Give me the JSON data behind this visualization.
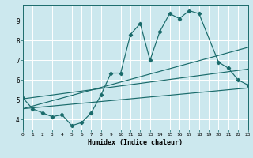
{
  "xlabel": "Humidex (Indice chaleur)",
  "bg_color": "#cce8ee",
  "line_color": "#1a6b6b",
  "grid_color": "#ffffff",
  "xmin": 0,
  "xmax": 23,
  "ymin": 3.5,
  "ymax": 9.8,
  "yticks": [
    4,
    5,
    6,
    7,
    8,
    9
  ],
  "xticks": [
    0,
    1,
    2,
    3,
    4,
    5,
    6,
    7,
    8,
    9,
    10,
    11,
    12,
    13,
    14,
    15,
    16,
    17,
    18,
    19,
    20,
    21,
    22,
    23
  ],
  "curve1_x": [
    0,
    1,
    2,
    3,
    4,
    5,
    6,
    7,
    8,
    9,
    10,
    11,
    12,
    13,
    14,
    15,
    16,
    17,
    18,
    20,
    21,
    22,
    23
  ],
  "curve1_y": [
    5.1,
    4.55,
    4.35,
    4.15,
    4.25,
    3.7,
    3.85,
    4.35,
    5.25,
    6.35,
    6.35,
    8.3,
    8.85,
    7.0,
    8.45,
    9.35,
    9.1,
    9.5,
    9.35,
    6.9,
    6.6,
    6.0,
    5.75
  ],
  "line1_x": [
    0,
    23
  ],
  "line1_y": [
    5.05,
    6.55
  ],
  "line2_x": [
    0,
    23
  ],
  "line2_y": [
    4.55,
    7.65
  ],
  "line3_x": [
    0,
    23
  ],
  "line3_y": [
    4.55,
    5.6
  ]
}
